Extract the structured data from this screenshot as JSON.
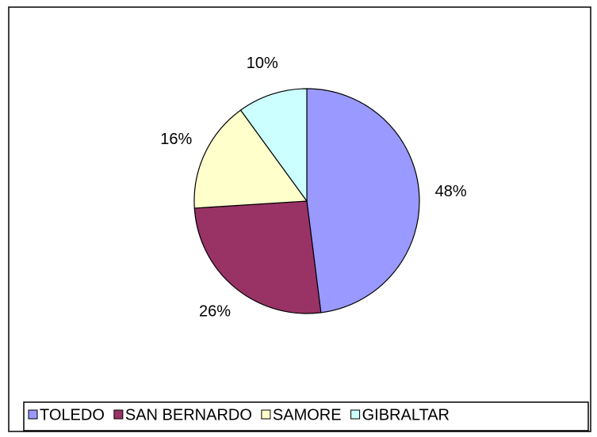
{
  "chart_data": {
    "type": "pie",
    "categories": [
      "TOLEDO",
      "SAN BERNARDO",
      "SAMORE",
      "GIBRALTAR"
    ],
    "values": [
      48,
      26,
      16,
      10
    ],
    "value_labels": [
      "48%",
      "26%",
      "16%",
      "10%"
    ],
    "colors": [
      "#9999ff",
      "#993366",
      "#ffffcc",
      "#ccffff"
    ],
    "legend": "bottom"
  }
}
